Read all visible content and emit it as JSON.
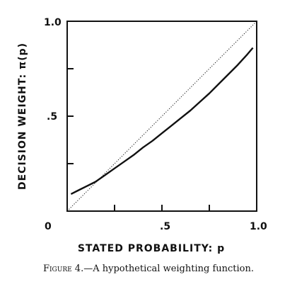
{
  "chart_data": {
    "type": "line",
    "ylabel": "DECISION WEIGHT: π(p)",
    "xlabel": "STATED PROBABILITY: p",
    "xlim": [
      0,
      1
    ],
    "ylim": [
      0,
      1
    ],
    "x_ticks": [
      0.25,
      0.5,
      0.75,
      1.0
    ],
    "y_ticks": [
      0.25,
      0.5,
      0.75,
      1.0
    ],
    "x_tick_labels": [
      "0",
      ".5",
      "1.0"
    ],
    "y_tick_labels": [
      "1.0",
      ".5"
    ],
    "series": [
      {
        "style": "solid",
        "x": [
          0.02,
          0.06,
          0.1,
          0.15,
          0.2,
          0.25,
          0.3,
          0.35,
          0.4,
          0.45,
          0.5,
          0.55,
          0.6,
          0.65,
          0.7,
          0.75,
          0.8,
          0.85,
          0.9,
          0.95,
          0.98
        ],
        "y": [
          0.09,
          0.11,
          0.13,
          0.155,
          0.19,
          0.225,
          0.26,
          0.295,
          0.335,
          0.37,
          0.41,
          0.45,
          0.49,
          0.53,
          0.575,
          0.62,
          0.67,
          0.72,
          0.77,
          0.825,
          0.86
        ]
      },
      {
        "style": "dotted",
        "x": [
          0,
          1
        ],
        "y": [
          0,
          1
        ]
      }
    ]
  },
  "caption": {
    "figure_label": "Figure 4.",
    "text": "—A hypothetical weighting function."
  }
}
